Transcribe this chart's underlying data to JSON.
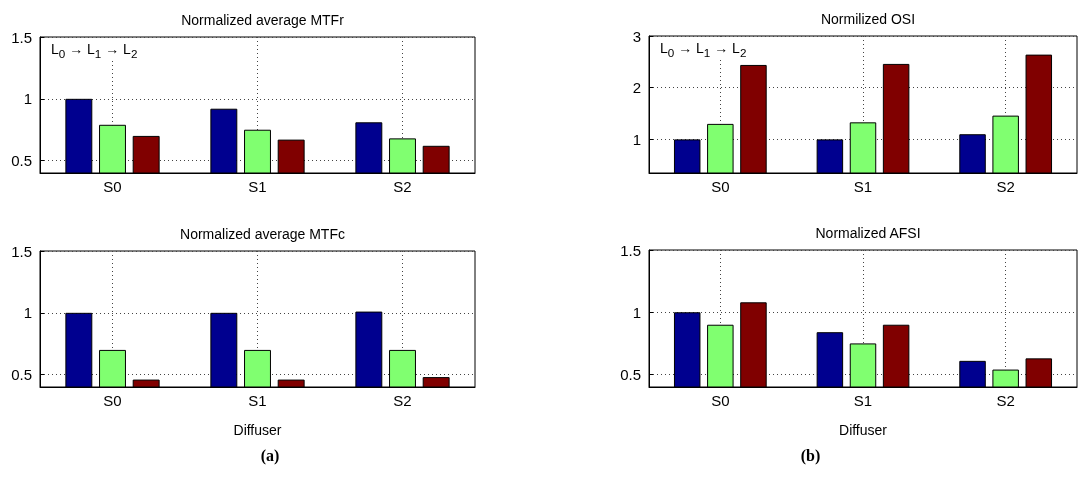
{
  "chart_data": [
    {
      "type": "bar",
      "title": "Normalized average MTFr",
      "categories": [
        "S0",
        "S1",
        "S2"
      ],
      "series": [
        {
          "color": "#00008f",
          "values": [
            1.0,
            0.92,
            0.81
          ]
        },
        {
          "color": "#80ff70",
          "values": [
            0.79,
            0.75,
            0.68
          ]
        },
        {
          "color": "#800000",
          "values": [
            0.7,
            0.67,
            0.62
          ]
        }
      ],
      "ylim": [
        0.4,
        1.5
      ],
      "yticks": [
        0.5,
        1,
        1.5
      ],
      "grid": true,
      "annotations": [
        "L$_{0}$ → L$_{1}$ → L$_{2}$"
      ]
    },
    {
      "type": "bar",
      "title": "Normilized OSI",
      "categories": [
        "S0",
        "S1",
        "S2"
      ],
      "series": [
        {
          "color": "#00008f",
          "values": [
            1.0,
            1.0,
            1.1
          ]
        },
        {
          "color": "#80ff70",
          "values": [
            1.3,
            1.33,
            1.46
          ]
        },
        {
          "color": "#800000",
          "values": [
            2.44,
            2.46,
            2.64
          ]
        }
      ],
      "ylim": [
        0.35,
        3
      ],
      "yticks": [
        1,
        2,
        3
      ],
      "grid": true,
      "annotations": [
        "L$_{0}$ → L$_{1}$ → L$_{2}$"
      ]
    },
    {
      "type": "bar",
      "title": "Normalized average MTFc",
      "xlabel": "Diffuser",
      "categories": [
        "S0",
        "S1",
        "S2"
      ],
      "series": [
        {
          "color": "#00008f",
          "values": [
            1.0,
            1.0,
            1.01
          ]
        },
        {
          "color": "#80ff70",
          "values": [
            0.7,
            0.7,
            0.7
          ]
        },
        {
          "color": "#800000",
          "values": [
            0.46,
            0.46,
            0.48
          ]
        }
      ],
      "ylim": [
        0.4,
        1.5
      ],
      "yticks": [
        0.5,
        1,
        1.5
      ],
      "grid": true,
      "annotations": [
        "(a)"
      ]
    },
    {
      "type": "bar",
      "title": "Normalized AFSI",
      "xlabel": "Diffuser",
      "categories": [
        "S0",
        "S1",
        "S2"
      ],
      "series": [
        {
          "color": "#00008f",
          "values": [
            1.0,
            0.84,
            0.61
          ]
        },
        {
          "color": "#80ff70",
          "values": [
            0.9,
            0.75,
            0.54
          ]
        },
        {
          "color": "#800000",
          "values": [
            1.08,
            0.9,
            0.63
          ]
        }
      ],
      "ylim": [
        0.4,
        1.5
      ],
      "yticks": [
        0.5,
        1,
        1.5
      ],
      "grid": true,
      "annotations": [
        "(b)"
      ]
    }
  ]
}
